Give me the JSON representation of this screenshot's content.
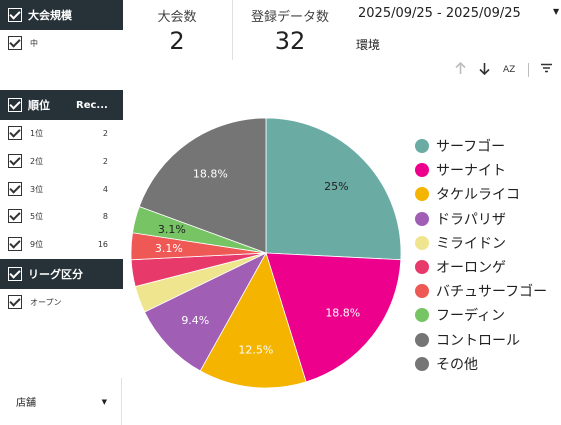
{
  "filters": {
    "size": {
      "header": "大会規模",
      "items": [
        {
          "label": "中"
        }
      ]
    },
    "rank": {
      "header": "順位",
      "column_header": "Rec...",
      "items": [
        {
          "label": "1位",
          "count": "2"
        },
        {
          "label": "2位",
          "count": "2"
        },
        {
          "label": "3位",
          "count": "4"
        },
        {
          "label": "5位",
          "count": "8"
        },
        {
          "label": "9位",
          "count": "16"
        }
      ]
    },
    "league": {
      "header": "リーグ区分",
      "items": [
        {
          "label": "オープン"
        }
      ]
    },
    "store": {
      "label": "店舗"
    }
  },
  "metrics": [
    {
      "label": "大会数",
      "value": "2"
    },
    {
      "label": "登録データ数",
      "value": "32"
    }
  ],
  "date_range": "2025/09/25 - 2025/09/25",
  "env_label": "環境",
  "toolbar": {
    "icons": [
      "arrow-up-icon",
      "arrow-down-icon",
      "sort-az-icon",
      "filter-lines-icon"
    ],
    "az_label": "AZ"
  },
  "chart_data": {
    "type": "pie",
    "start_angle_deg": 0,
    "direction": "clockwise",
    "slices": [
      {
        "name": "サーフゴー",
        "value": 25,
        "label": "25%",
        "color": "#6aaca4"
      },
      {
        "name": "サーナイト",
        "value": 18.8,
        "label": "18.8%",
        "color": "#ec008c"
      },
      {
        "name": "タケルライコ",
        "value": 12.5,
        "label": "12.5%",
        "color": "#f4b400"
      },
      {
        "name": "ドラパリザ",
        "value": 9.4,
        "label": "9.4%",
        "color": "#a05eb5"
      },
      {
        "name": "ミライドン",
        "value": 3.1,
        "label": "",
        "color": "#efe58f"
      },
      {
        "name": "オーロンゲ",
        "value": 3.1,
        "label": "",
        "color": "#e8396b"
      },
      {
        "name": "バチュサーフゴー",
        "value": 3.1,
        "label": "3.1%",
        "color": "#ee5855"
      },
      {
        "name": "フーディン",
        "value": 3.1,
        "label": "3.1%",
        "color": "#77c465"
      },
      {
        "name": "コントロール",
        "value": 18.8,
        "label": "18.8%",
        "color": "#757575"
      },
      {
        "name": "その他",
        "value": 0,
        "label": "",
        "color": "#757575"
      }
    ]
  }
}
